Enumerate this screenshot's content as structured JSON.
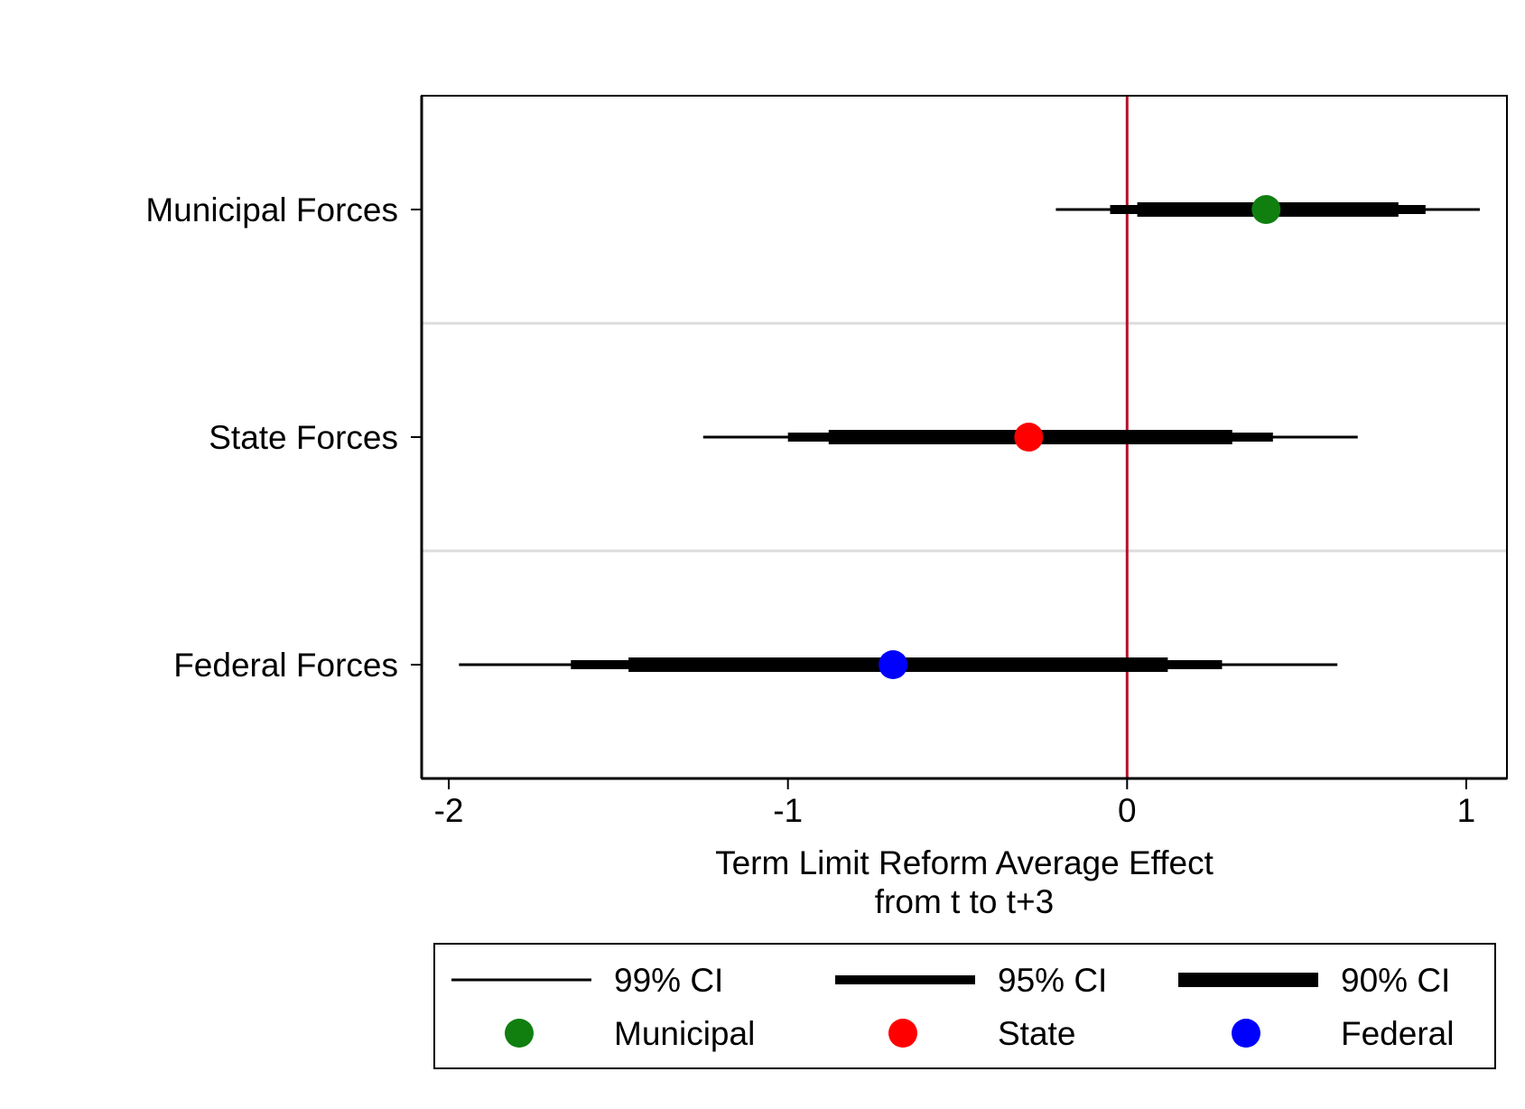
{
  "chart_data": {
    "type": "coefficient-plot",
    "xlabel": "Term Limit Reform Average Effect",
    "xlabel_line2": "from t to t+3",
    "xlim": [
      -2.08,
      1.12
    ],
    "xticks": [
      {
        "value": -2,
        "label": "-2"
      },
      {
        "value": -1,
        "label": "-1"
      },
      {
        "value": 0,
        "label": "0"
      },
      {
        "value": 1,
        "label": "1"
      }
    ],
    "reference_line": {
      "value": 0,
      "color": "#b5112c"
    },
    "grid": "horizontal separators between categories",
    "series": [
      {
        "category": "Municipal Forces",
        "estimate": 0.41,
        "ci99": [
          -0.21,
          1.04
        ],
        "ci95": [
          -0.05,
          0.88
        ],
        "ci90": [
          0.03,
          0.8
        ],
        "color": "#107f10"
      },
      {
        "category": "State Forces",
        "estimate": -0.29,
        "ci99": [
          -1.25,
          0.68
        ],
        "ci95": [
          -1.0,
          0.43
        ],
        "ci90": [
          -0.88,
          0.31
        ],
        "color": "#ff0000"
      },
      {
        "category": "Federal Forces",
        "estimate": -0.69,
        "ci99": [
          -1.97,
          0.62
        ],
        "ci95": [
          -1.64,
          0.28
        ],
        "ci90": [
          -1.47,
          0.12
        ],
        "color": "#0000ff"
      }
    ],
    "legend": {
      "position": "bottom",
      "ci_items": [
        {
          "label": "99% CI",
          "kind": "ci99"
        },
        {
          "label": "95% CI",
          "kind": "ci95"
        },
        {
          "label": "90% CI",
          "kind": "ci90"
        }
      ],
      "marker_items": [
        {
          "label": "Municipal",
          "color": "#107f10"
        },
        {
          "label": "State",
          "color": "#ff0000"
        },
        {
          "label": "Federal",
          "color": "#0000ff"
        }
      ]
    }
  }
}
